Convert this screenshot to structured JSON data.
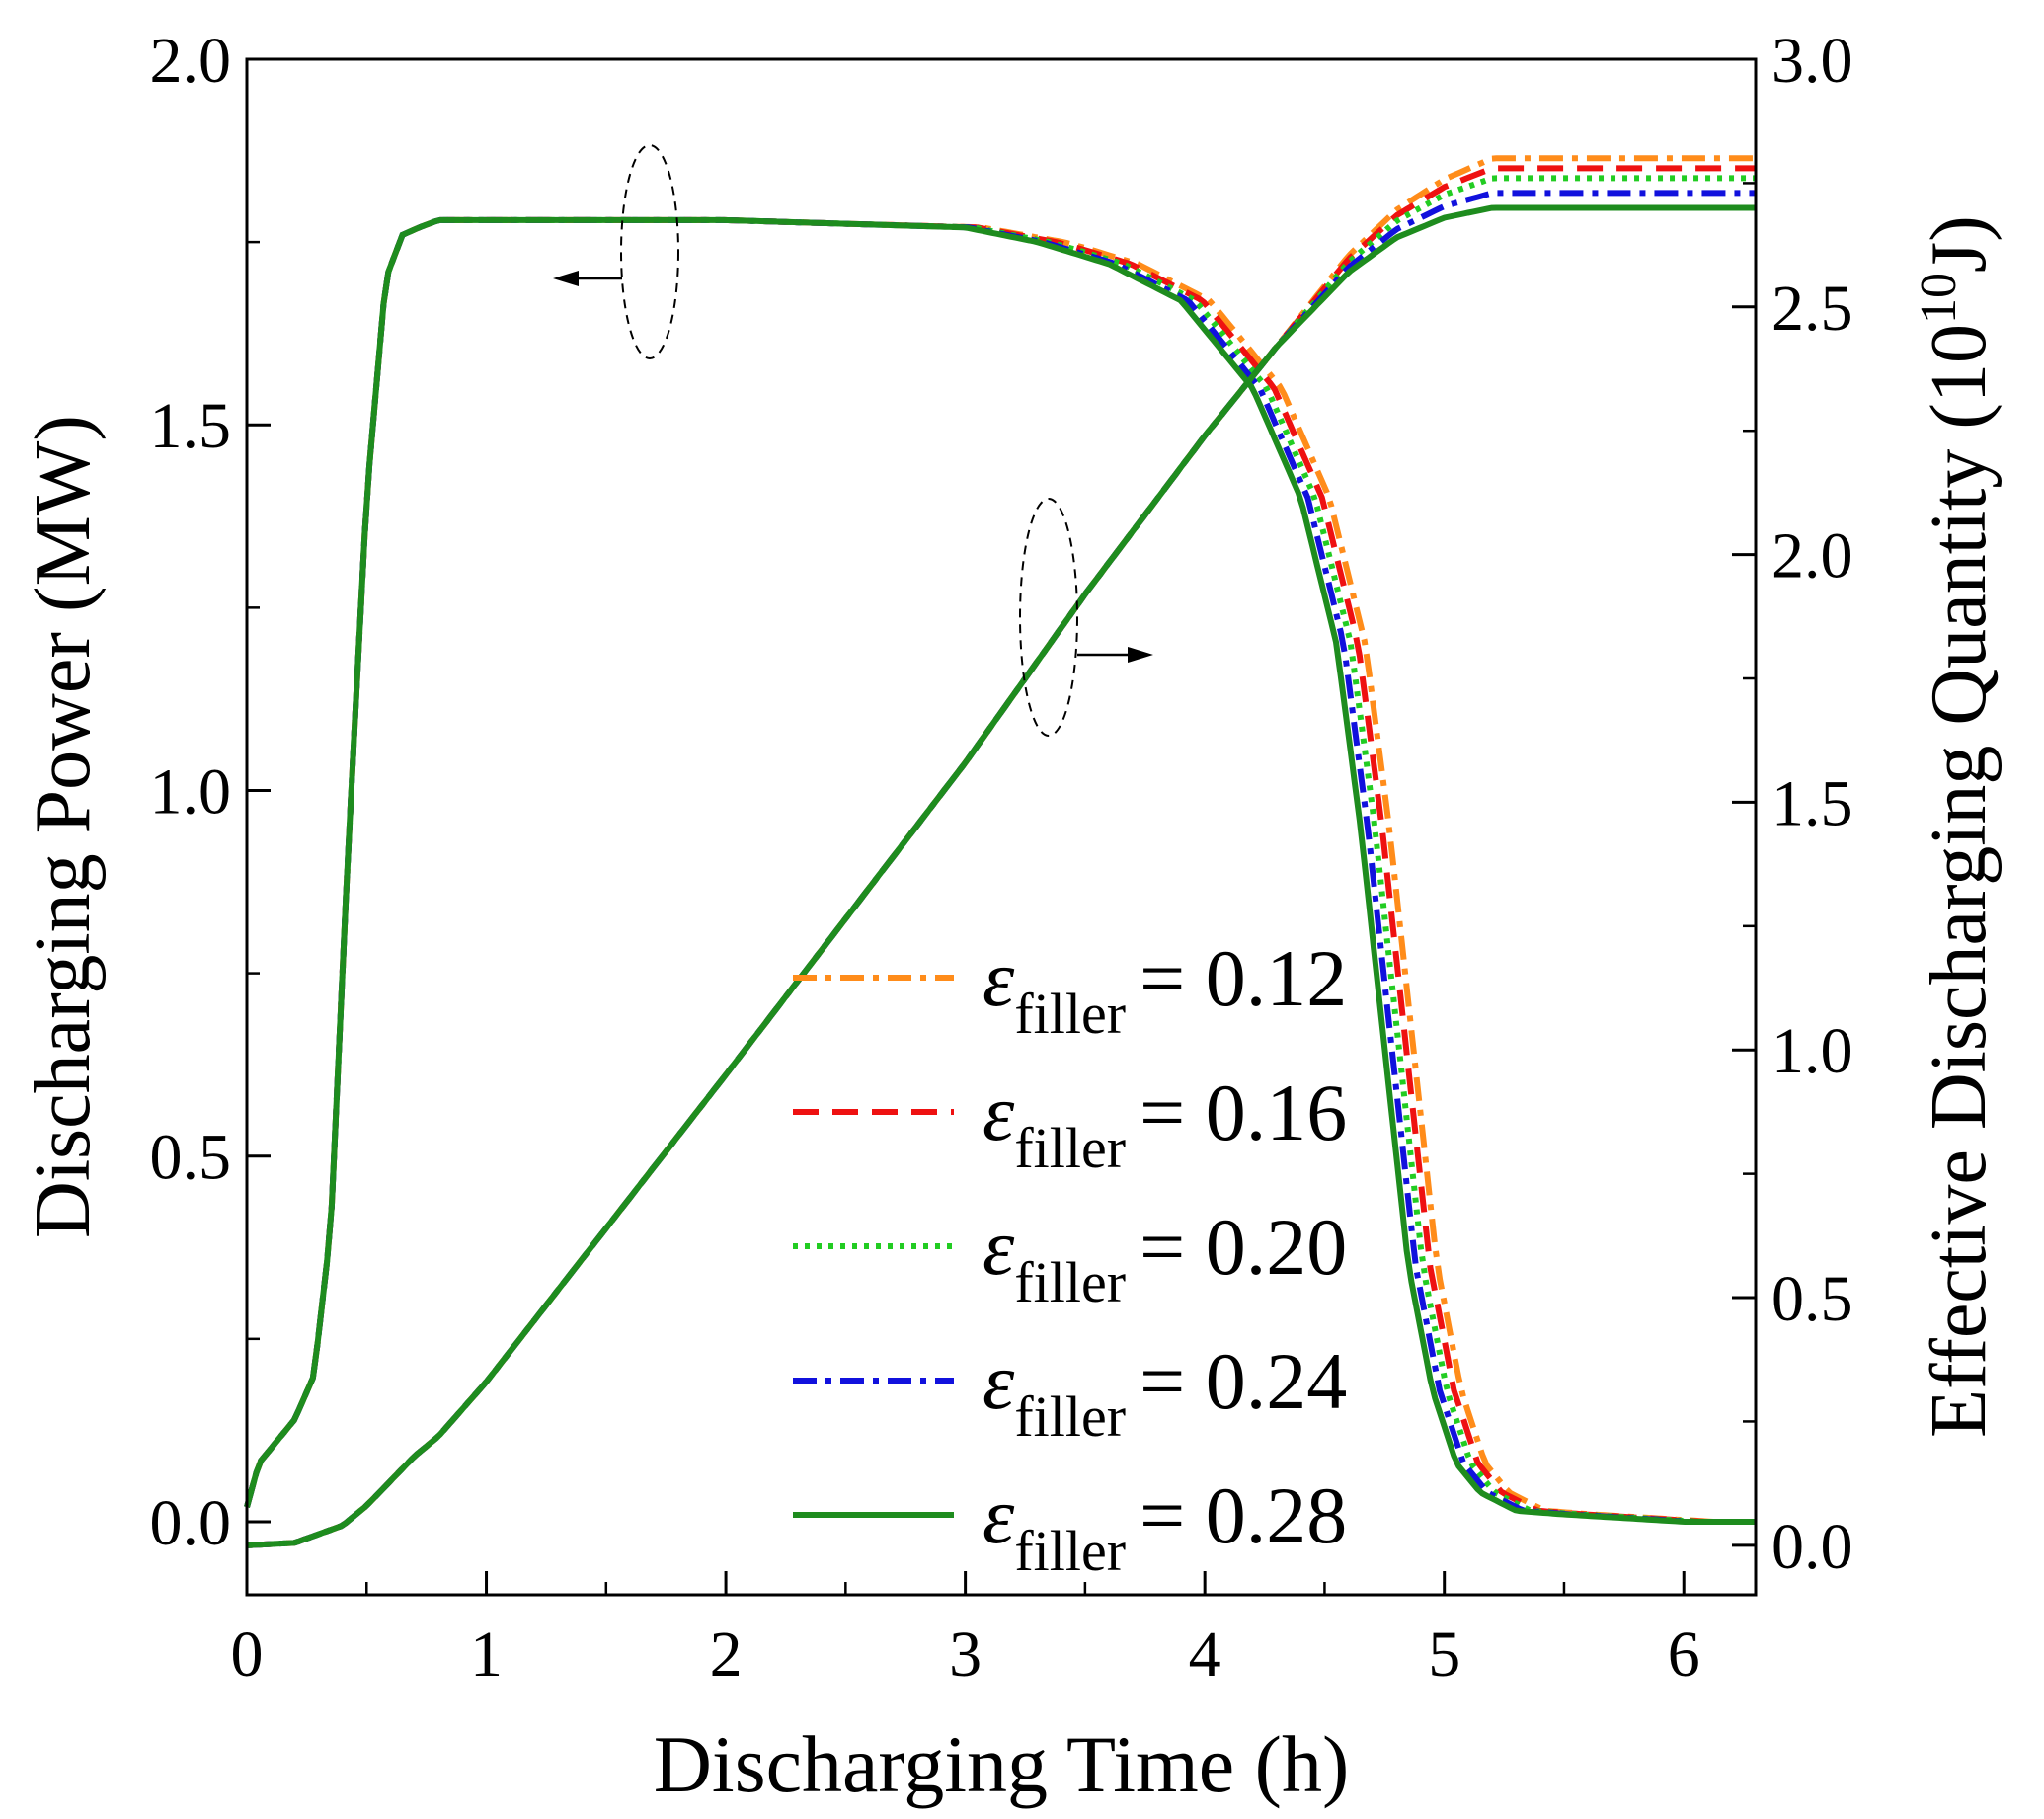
{
  "chart_data": {
    "type": "line",
    "xlabel": "Discharging Time (h)",
    "ylabel_left": "Discharging Power (MW)",
    "ylabel_right": {
      "main": "Effective Discharging Quantity (10",
      "sup": "10",
      "tail": "J)"
    },
    "xlim": [
      0,
      6.3
    ],
    "ylim_left": [
      -0.1,
      2.0
    ],
    "ylim_right": [
      -0.1,
      3.0
    ],
    "x_ticks": [
      "0",
      "1",
      "2",
      "3",
      "4",
      "5",
      "6"
    ],
    "y_left_ticks": [
      "0.0",
      "0.5",
      "1.0",
      "1.5",
      "2.0"
    ],
    "y_right_ticks": [
      "0.0",
      "0.5",
      "1.0",
      "1.5",
      "2.0",
      "2.5",
      "3.0"
    ],
    "legend_symbol": "ε",
    "legend_subscript": "filler",
    "series": [
      {
        "name": "0.12",
        "label": "= 0.12",
        "color": "#FF8C1A",
        "dash": "dashdot",
        "lag": 0.12,
        "plateau": 2.8
      },
      {
        "name": "0.16",
        "label": "= 0.16",
        "color": "#EE1111",
        "dash": "dash",
        "lag": 0.09,
        "plateau": 2.78
      },
      {
        "name": "0.20",
        "label": "= 0.20",
        "color": "#22CC22",
        "dash": "dot",
        "lag": 0.06,
        "plateau": 2.76
      },
      {
        "name": "0.24",
        "label": "= 0.24",
        "color": "#1111DD",
        "dash": "dashdot",
        "lag": 0.03,
        "plateau": 2.73
      },
      {
        "name": "0.28",
        "label": "= 0.28",
        "color": "#1E8C1E",
        "dash": "solid",
        "lag": 0.0,
        "plateau": 2.7
      }
    ],
    "power_curve": {
      "x": [
        0,
        0.05,
        0.1,
        0.2,
        0.28,
        0.35,
        0.42,
        0.5,
        0.58,
        0.65,
        0.72,
        0.8,
        1.0,
        2.0,
        3.0,
        3.3,
        3.6,
        3.9,
        4.2,
        4.4,
        4.55,
        4.65,
        4.75,
        4.85,
        4.95,
        5.05,
        5.15,
        5.3,
        5.5,
        6.0,
        6.3
      ],
      "y": [
        0.02,
        0.08,
        0.1,
        0.14,
        0.2,
        0.4,
        0.9,
        1.4,
        1.7,
        1.76,
        1.77,
        1.78,
        1.78,
        1.78,
        1.77,
        1.75,
        1.72,
        1.67,
        1.55,
        1.4,
        1.2,
        0.95,
        0.65,
        0.35,
        0.18,
        0.08,
        0.04,
        0.015,
        0.01,
        0.0,
        0.0
      ]
    },
    "energy_curve": {
      "x": [
        0,
        0.2,
        0.4,
        0.5,
        0.6,
        0.7,
        0.8,
        1.0,
        2.0,
        3.0,
        3.5,
        4.0,
        4.3,
        4.6,
        4.8,
        5.0,
        5.2,
        5.5,
        6.3
      ],
      "y": [
        0.0,
        0.005,
        0.04,
        0.08,
        0.13,
        0.18,
        0.22,
        0.33,
        0.95,
        1.58,
        1.92,
        2.24,
        2.42,
        2.57,
        2.64,
        2.68,
        2.7,
        2.7,
        2.7
      ]
    }
  }
}
